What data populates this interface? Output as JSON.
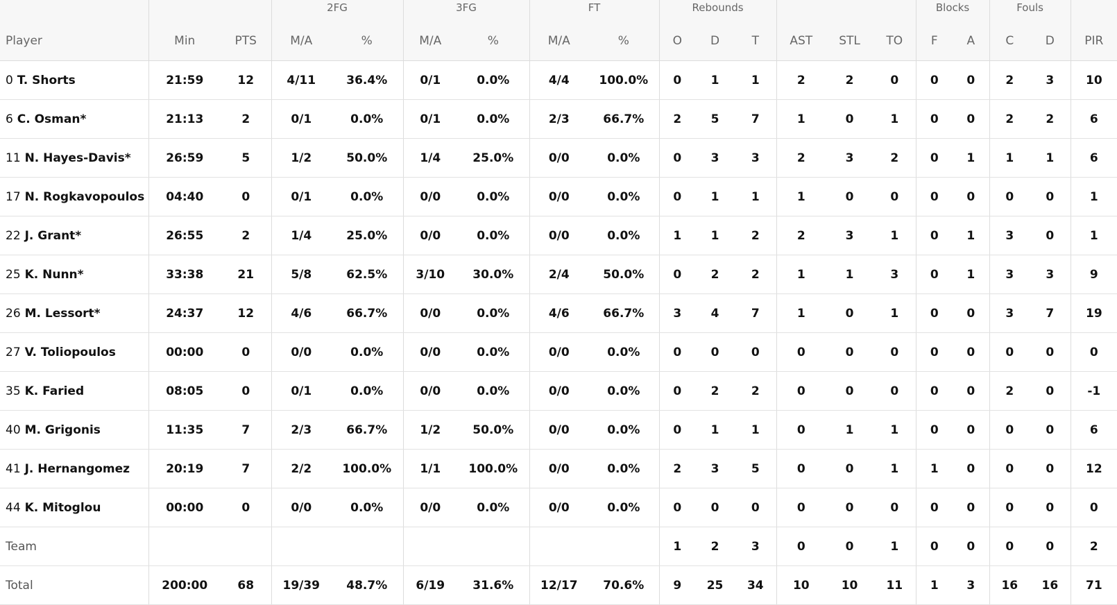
{
  "groups": {
    "fg2": "2FG",
    "fg3": "3FG",
    "ft": "FT",
    "reb": "Rebounds",
    "blk": "Blocks",
    "fouls": "Fouls"
  },
  "headers": {
    "player": "Player",
    "min": "Min",
    "pts": "PTS",
    "fg2_ma": "M/A",
    "fg2_pct": "%",
    "fg3_ma": "M/A",
    "fg3_pct": "%",
    "ft_ma": "M/A",
    "ft_pct": "%",
    "reb_o": "O",
    "reb_d": "D",
    "reb_t": "T",
    "ast": "AST",
    "stl": "STL",
    "to": "TO",
    "blk_f": "F",
    "blk_a": "A",
    "foul_c": "C",
    "foul_d": "D",
    "pir": "PIR"
  },
  "players": [
    {
      "num": "0",
      "name": "T. Shorts",
      "min": "21:59",
      "pts": "12",
      "fg2_ma": "4/11",
      "fg2_pct": "36.4%",
      "fg3_ma": "0/1",
      "fg3_pct": "0.0%",
      "ft_ma": "4/4",
      "ft_pct": "100.0%",
      "reb_o": "0",
      "reb_d": "1",
      "reb_t": "1",
      "ast": "2",
      "stl": "2",
      "to": "0",
      "blk_f": "0",
      "blk_a": "0",
      "foul_c": "2",
      "foul_d": "3",
      "pir": "10"
    },
    {
      "num": "6",
      "name": "C. Osman*",
      "min": "21:13",
      "pts": "2",
      "fg2_ma": "0/1",
      "fg2_pct": "0.0%",
      "fg3_ma": "0/1",
      "fg3_pct": "0.0%",
      "ft_ma": "2/3",
      "ft_pct": "66.7%",
      "reb_o": "2",
      "reb_d": "5",
      "reb_t": "7",
      "ast": "1",
      "stl": "0",
      "to": "1",
      "blk_f": "0",
      "blk_a": "0",
      "foul_c": "2",
      "foul_d": "2",
      "pir": "6"
    },
    {
      "num": "11",
      "name": "N. Hayes-Davis*",
      "min": "26:59",
      "pts": "5",
      "fg2_ma": "1/2",
      "fg2_pct": "50.0%",
      "fg3_ma": "1/4",
      "fg3_pct": "25.0%",
      "ft_ma": "0/0",
      "ft_pct": "0.0%",
      "reb_o": "0",
      "reb_d": "3",
      "reb_t": "3",
      "ast": "2",
      "stl": "3",
      "to": "2",
      "blk_f": "0",
      "blk_a": "1",
      "foul_c": "1",
      "foul_d": "1",
      "pir": "6"
    },
    {
      "num": "17",
      "name": "N. Rogkavopoulos",
      "min": "04:40",
      "pts": "0",
      "fg2_ma": "0/1",
      "fg2_pct": "0.0%",
      "fg3_ma": "0/0",
      "fg3_pct": "0.0%",
      "ft_ma": "0/0",
      "ft_pct": "0.0%",
      "reb_o": "0",
      "reb_d": "1",
      "reb_t": "1",
      "ast": "1",
      "stl": "0",
      "to": "0",
      "blk_f": "0",
      "blk_a": "0",
      "foul_c": "0",
      "foul_d": "0",
      "pir": "1"
    },
    {
      "num": "22",
      "name": "J. Grant*",
      "min": "26:55",
      "pts": "2",
      "fg2_ma": "1/4",
      "fg2_pct": "25.0%",
      "fg3_ma": "0/0",
      "fg3_pct": "0.0%",
      "ft_ma": "0/0",
      "ft_pct": "0.0%",
      "reb_o": "1",
      "reb_d": "1",
      "reb_t": "2",
      "ast": "2",
      "stl": "3",
      "to": "1",
      "blk_f": "0",
      "blk_a": "1",
      "foul_c": "3",
      "foul_d": "0",
      "pir": "1"
    },
    {
      "num": "25",
      "name": "K. Nunn*",
      "min": "33:38",
      "pts": "21",
      "fg2_ma": "5/8",
      "fg2_pct": "62.5%",
      "fg3_ma": "3/10",
      "fg3_pct": "30.0%",
      "ft_ma": "2/4",
      "ft_pct": "50.0%",
      "reb_o": "0",
      "reb_d": "2",
      "reb_t": "2",
      "ast": "1",
      "stl": "1",
      "to": "3",
      "blk_f": "0",
      "blk_a": "1",
      "foul_c": "3",
      "foul_d": "3",
      "pir": "9"
    },
    {
      "num": "26",
      "name": "M. Lessort*",
      "min": "24:37",
      "pts": "12",
      "fg2_ma": "4/6",
      "fg2_pct": "66.7%",
      "fg3_ma": "0/0",
      "fg3_pct": "0.0%",
      "ft_ma": "4/6",
      "ft_pct": "66.7%",
      "reb_o": "3",
      "reb_d": "4",
      "reb_t": "7",
      "ast": "1",
      "stl": "0",
      "to": "1",
      "blk_f": "0",
      "blk_a": "0",
      "foul_c": "3",
      "foul_d": "7",
      "pir": "19"
    },
    {
      "num": "27",
      "name": "V. Toliopoulos",
      "min": "00:00",
      "pts": "0",
      "fg2_ma": "0/0",
      "fg2_pct": "0.0%",
      "fg3_ma": "0/0",
      "fg3_pct": "0.0%",
      "ft_ma": "0/0",
      "ft_pct": "0.0%",
      "reb_o": "0",
      "reb_d": "0",
      "reb_t": "0",
      "ast": "0",
      "stl": "0",
      "to": "0",
      "blk_f": "0",
      "blk_a": "0",
      "foul_c": "0",
      "foul_d": "0",
      "pir": "0"
    },
    {
      "num": "35",
      "name": "K. Faried",
      "min": "08:05",
      "pts": "0",
      "fg2_ma": "0/1",
      "fg2_pct": "0.0%",
      "fg3_ma": "0/0",
      "fg3_pct": "0.0%",
      "ft_ma": "0/0",
      "ft_pct": "0.0%",
      "reb_o": "0",
      "reb_d": "2",
      "reb_t": "2",
      "ast": "0",
      "stl": "0",
      "to": "0",
      "blk_f": "0",
      "blk_a": "0",
      "foul_c": "2",
      "foul_d": "0",
      "pir": "-1"
    },
    {
      "num": "40",
      "name": "M. Grigonis",
      "min": "11:35",
      "pts": "7",
      "fg2_ma": "2/3",
      "fg2_pct": "66.7%",
      "fg3_ma": "1/2",
      "fg3_pct": "50.0%",
      "ft_ma": "0/0",
      "ft_pct": "0.0%",
      "reb_o": "0",
      "reb_d": "1",
      "reb_t": "1",
      "ast": "0",
      "stl": "1",
      "to": "1",
      "blk_f": "0",
      "blk_a": "0",
      "foul_c": "0",
      "foul_d": "0",
      "pir": "6"
    },
    {
      "num": "41",
      "name": "J. Hernangomez",
      "min": "20:19",
      "pts": "7",
      "fg2_ma": "2/2",
      "fg2_pct": "100.0%",
      "fg3_ma": "1/1",
      "fg3_pct": "100.0%",
      "ft_ma": "0/0",
      "ft_pct": "0.0%",
      "reb_o": "2",
      "reb_d": "3",
      "reb_t": "5",
      "ast": "0",
      "stl": "0",
      "to": "1",
      "blk_f": "1",
      "blk_a": "0",
      "foul_c": "0",
      "foul_d": "0",
      "pir": "12"
    },
    {
      "num": "44",
      "name": "K. Mitoglou",
      "min": "00:00",
      "pts": "0",
      "fg2_ma": "0/0",
      "fg2_pct": "0.0%",
      "fg3_ma": "0/0",
      "fg3_pct": "0.0%",
      "ft_ma": "0/0",
      "ft_pct": "0.0%",
      "reb_o": "0",
      "reb_d": "0",
      "reb_t": "0",
      "ast": "0",
      "stl": "0",
      "to": "0",
      "blk_f": "0",
      "blk_a": "0",
      "foul_c": "0",
      "foul_d": "0",
      "pir": "0"
    }
  ],
  "team": {
    "label": "Team",
    "min": "",
    "pts": "",
    "fg2_ma": "",
    "fg2_pct": "",
    "fg3_ma": "",
    "fg3_pct": "",
    "ft_ma": "",
    "ft_pct": "",
    "reb_o": "1",
    "reb_d": "2",
    "reb_t": "3",
    "ast": "0",
    "stl": "0",
    "to": "1",
    "blk_f": "0",
    "blk_a": "0",
    "foul_c": "0",
    "foul_d": "0",
    "pir": "2"
  },
  "total": {
    "label": "Total",
    "min": "200:00",
    "pts": "68",
    "fg2_ma": "19/39",
    "fg2_pct": "48.7%",
    "fg3_ma": "6/19",
    "fg3_pct": "31.6%",
    "ft_ma": "12/17",
    "ft_pct": "70.6%",
    "reb_o": "9",
    "reb_d": "25",
    "reb_t": "34",
    "ast": "10",
    "stl": "10",
    "to": "11",
    "blk_f": "1",
    "blk_a": "3",
    "foul_c": "16",
    "foul_d": "16",
    "pir": "71"
  }
}
